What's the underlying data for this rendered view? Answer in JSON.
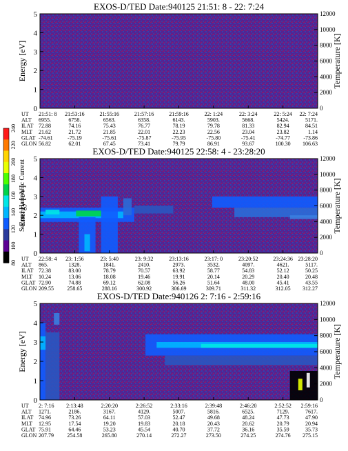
{
  "colorbar": {
    "label": "Second Harmonic Current",
    "ticks": [
      80,
      100,
      120,
      140,
      160,
      180,
      200,
      220,
      240
    ],
    "range": [
      80,
      240
    ],
    "colors": [
      "#000000",
      "#5c0094",
      "#2a3a9c",
      "#0f5cff",
      "#00b6ff",
      "#00e6e6",
      "#00d34a",
      "#4cff00",
      "#e8ff00",
      "#ffd400",
      "#ff7a00",
      "#ff1a1a"
    ]
  },
  "chart_data": [
    {
      "type": "heatmap",
      "title": "EXOS-D/TED   Date:940125  21:51: 8 - 22: 7:24",
      "ylabel": "Energy [eV]",
      "y2label": "Temperature [K]",
      "ylim": [
        0,
        5
      ],
      "y2lim": [
        0,
        12000
      ],
      "yticks": [
        0,
        1,
        2,
        3,
        4,
        5
      ],
      "y2ticks": [
        0,
        2000,
        4000,
        6000,
        8000,
        10000,
        12000
      ],
      "time_rows": [
        "UT",
        "ALT",
        "ILAT",
        "MLT",
        "GLAT",
        "GLON"
      ],
      "columns": [
        [
          "21:51: 8",
          "6955.",
          "72.88",
          "21.62",
          "-74.61",
          "56.82"
        ],
        [
          "21:53:16",
          "6758.",
          "74.16",
          "21.72",
          "-75.19",
          "62.01"
        ],
        [
          "21:55:16",
          "6563.",
          "75.43",
          "21.85",
          "-75.61",
          "67.45"
        ],
        [
          "21:57:16",
          "6358.",
          "76.77",
          "22.01",
          "-75.87",
          "73.41"
        ],
        [
          "21:59:16",
          "6143.",
          "78.19",
          "22.23",
          "-75.95",
          "79.79"
        ],
        [
          "22: 1:24",
          "5903.",
          "79.78",
          "22.56",
          "-75.80",
          "86.91"
        ],
        [
          "22: 3:24",
          "5668.",
          "81.33",
          "23.04",
          "-75.41",
          "93.67"
        ],
        [
          "22: 5:24",
          "5424.",
          "82.94",
          "23.82",
          "-74.77",
          "100.30"
        ],
        [
          "22: 7:24",
          "5171.",
          "84.51",
          "1.14",
          "-73.86",
          "106.63"
        ]
      ]
    },
    {
      "type": "heatmap",
      "title": "EXOS-D/TED   Date:940125  22:58: 4 - 23:28:20",
      "ylabel": "Energy [eV]",
      "y2label": "Temperature [K]",
      "ylim": [
        0,
        5
      ],
      "y2lim": [
        0,
        12000
      ],
      "yticks": [
        0,
        1,
        2,
        3,
        4,
        5
      ],
      "y2ticks": [
        0,
        2000,
        4000,
        6000,
        8000,
        10000,
        12000
      ],
      "time_rows": [
        "UT",
        "ALT",
        "ILAT",
        "MLT",
        "GLAT",
        "GLON"
      ],
      "columns": [
        [
          "22:58: 4",
          "865.",
          "72.38",
          "10.24",
          "72.90",
          "209.55"
        ],
        [
          "23: 1:56",
          "1328.",
          "83.00",
          "13.06",
          "74.88",
          "258.65"
        ],
        [
          "23: 5:40",
          "1841.",
          "78.79",
          "18.08",
          "69.12",
          "288.16"
        ],
        [
          "23: 9:32",
          "2410.",
          "70.57",
          "19.46",
          "62.08",
          "300.92"
        ],
        [
          "23:13:16",
          "2973.",
          "63.92",
          "19.91",
          "56.26",
          "306.69"
        ],
        [
          "23:17: 0",
          "3532.",
          "58.77",
          "20.14",
          "51.64",
          "309.71"
        ],
        [
          "23:20:52",
          "4097.",
          "54.83",
          "20.29",
          "48.00",
          "311.32"
        ],
        [
          "23:24:36",
          "4621.",
          "52.12",
          "20.40",
          "45.41",
          "312.05"
        ],
        [
          "23:28:20",
          "5117.",
          "50.25",
          "20.48",
          "43.55",
          "312.27"
        ]
      ]
    },
    {
      "type": "heatmap",
      "title": "EXOS-D/TED   Date:940126  2: 7:16 - 2:59:16",
      "ylabel": "Energy [eV]",
      "y2label": "Temperature [K]",
      "ylim": [
        0,
        5
      ],
      "y2lim": [
        0,
        12000
      ],
      "yticks": [
        0,
        1,
        2,
        3,
        4,
        5
      ],
      "y2ticks": [
        0,
        2000,
        4000,
        6000,
        8000,
        10000,
        12000
      ],
      "time_rows": [
        "UT",
        "ALT",
        "ILAT",
        "MLT",
        "GLAT",
        "GLON"
      ],
      "columns": [
        [
          "2: 7:16",
          "1271.",
          "74.96",
          "12.95",
          "75.91",
          "207.79"
        ],
        [
          "2:13:48",
          "2186.",
          "73.26",
          "17.54",
          "64.46",
          "254.58"
        ],
        [
          "2:20:20",
          "3167.",
          "64.11",
          "19.20",
          "53.23",
          "265.80"
        ],
        [
          "2:26:52",
          "4129.",
          "57.03",
          "19.83",
          "45.54",
          "270.14"
        ],
        [
          "2:33:16",
          "5007.",
          "52.47",
          "20.18",
          "40.70",
          "272.27"
        ],
        [
          "2:39:48",
          "5816.",
          "49.68",
          "20.43",
          "37.72",
          "273.50"
        ],
        [
          "2:46:20",
          "6525.",
          "48.24",
          "20.62",
          "36.16",
          "274.25"
        ],
        [
          "2:52:52",
          "7129.",
          "47.73",
          "20.79",
          "35.59",
          "274.76"
        ],
        [
          "2:59:16",
          "7617.",
          "47.90",
          "20.94",
          "35.73",
          "275.15"
        ]
      ]
    }
  ]
}
